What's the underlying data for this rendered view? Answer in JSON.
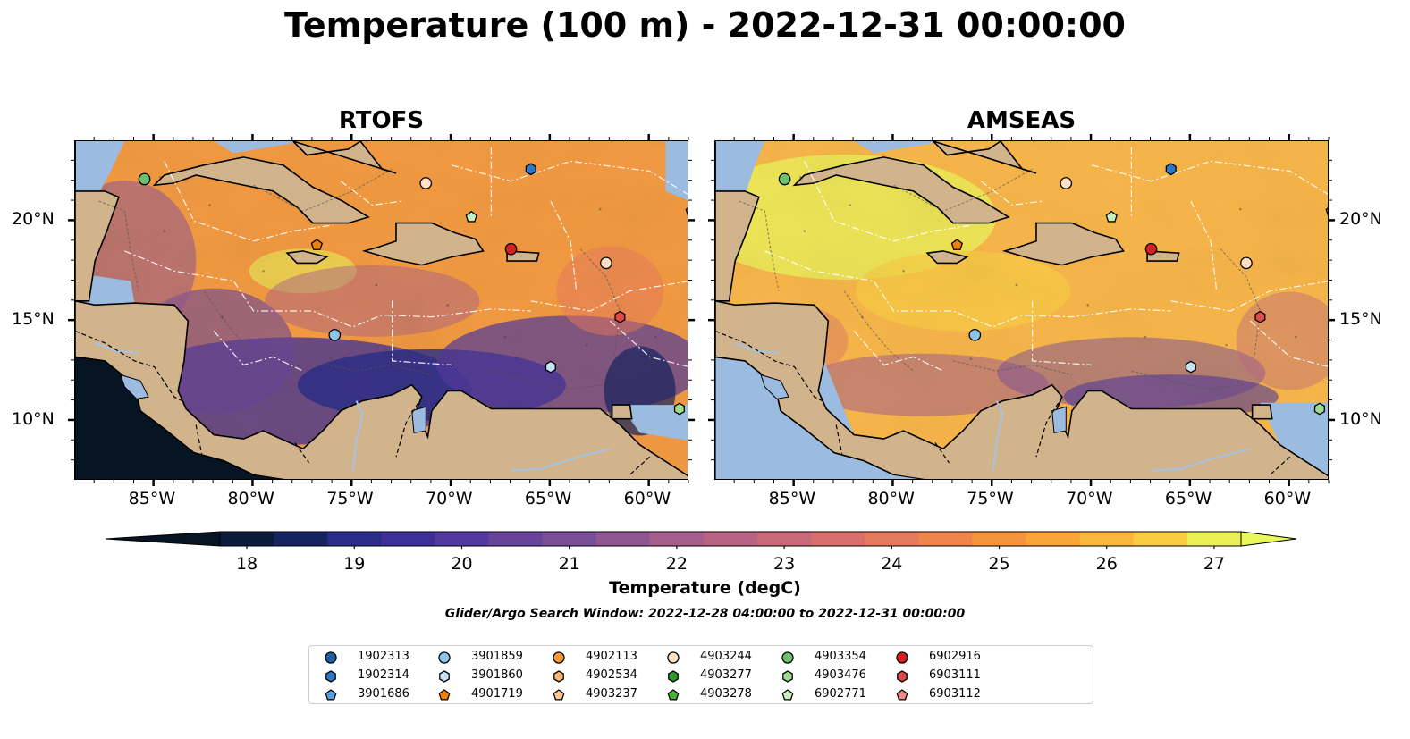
{
  "title": "Temperature (100 m) - 2022-12-31 00:00:00",
  "panels": [
    {
      "title": "RTOFS"
    },
    {
      "title": "AMSEAS"
    }
  ],
  "lon_ticks": [
    "85°W",
    "80°W",
    "75°W",
    "70°W",
    "65°W",
    "60°W"
  ],
  "lat_ticks": [
    "20°N",
    "15°N",
    "10°N"
  ],
  "colorbar": {
    "ticks": [
      "18",
      "19",
      "20",
      "21",
      "22",
      "23",
      "24",
      "25",
      "26",
      "27"
    ],
    "label": "Temperature (degC)",
    "colors": [
      "#0b1c3a",
      "#16235f",
      "#2a2c86",
      "#3d2f97",
      "#52399b",
      "#67449a",
      "#7b4e98",
      "#8f5694",
      "#a45e8c",
      "#b76383",
      "#c96878",
      "#d86f6b",
      "#e5795c",
      "#ef854c",
      "#f6943e",
      "#f9a53a",
      "#fab73d",
      "#f8cd45",
      "#eaf05a"
    ],
    "under_color": "#071423",
    "over_color": "#eaf75a"
  },
  "search_window": "Glider/Argo Search Window: 2022-12-28 04:00:00 to 2022-12-31 00:00:00",
  "legend": [
    {
      "id": "1902313",
      "shape": "circle",
      "color": "#1f5fa8"
    },
    {
      "id": "1902314",
      "shape": "hexagon",
      "color": "#2d78c8"
    },
    {
      "id": "3901686",
      "shape": "pentagon",
      "color": "#5a9ee0"
    },
    {
      "id": "3901859",
      "shape": "circle",
      "color": "#8cc4ec"
    },
    {
      "id": "3901860",
      "shape": "hexagon",
      "color": "#c6e2f7"
    },
    {
      "id": "4901719",
      "shape": "pentagon",
      "color": "#f07f0c"
    },
    {
      "id": "4902113",
      "shape": "circle",
      "color": "#f59b38"
    },
    {
      "id": "4902534",
      "shape": "hexagon",
      "color": "#f9b573"
    },
    {
      "id": "4903237",
      "shape": "pentagon",
      "color": "#fbc999"
    },
    {
      "id": "4903244",
      "shape": "circle",
      "color": "#fde0c6"
    },
    {
      "id": "4903277",
      "shape": "hexagon",
      "color": "#2e9a2e"
    },
    {
      "id": "4903278",
      "shape": "pentagon",
      "color": "#4daf3b"
    },
    {
      "id": "4903354",
      "shape": "circle",
      "color": "#6cc06c"
    },
    {
      "id": "4903476",
      "shape": "hexagon",
      "color": "#9bdc90"
    },
    {
      "id": "6902771",
      "shape": "pentagon",
      "color": "#c8efc0"
    },
    {
      "id": "6902916",
      "shape": "circle",
      "color": "#d62020"
    },
    {
      "id": "6903111",
      "shape": "hexagon",
      "color": "#e04a4a"
    },
    {
      "id": "6903112",
      "shape": "pentagon",
      "color": "#ef8a8a"
    }
  ],
  "map_colors": {
    "land": "#d2b48c",
    "rtofs_water": "#f29a42",
    "amseas_water": "#f7b64a",
    "no_data": "#9bbbe0"
  },
  "platforms": [
    {
      "id": "4903354",
      "lon": -85.5,
      "lat": 22.1
    },
    {
      "id": "4903244",
      "lon": -71.3,
      "lat": 21.9
    },
    {
      "id": "1902314",
      "lon": -66.0,
      "lat": 22.6
    },
    {
      "id": "6902771",
      "lon": -69.0,
      "lat": 20.2
    },
    {
      "id": "4901719",
      "lon": -76.8,
      "lat": 18.8
    },
    {
      "id": "6902916",
      "lon": -67.0,
      "lat": 18.6
    },
    {
      "id": "4903244",
      "lon": -62.2,
      "lat": 17.9
    },
    {
      "id": "6903111",
      "lon": -61.5,
      "lat": 15.2
    },
    {
      "id": "3901859",
      "lon": -75.9,
      "lat": 14.3
    },
    {
      "id": "3901860",
      "lon": -65.0,
      "lat": 12.7
    },
    {
      "id": "4903476",
      "lon": -58.5,
      "lat": 10.6
    },
    {
      "id": "3901686",
      "lon": -57.9,
      "lat": 20.5
    }
  ]
}
